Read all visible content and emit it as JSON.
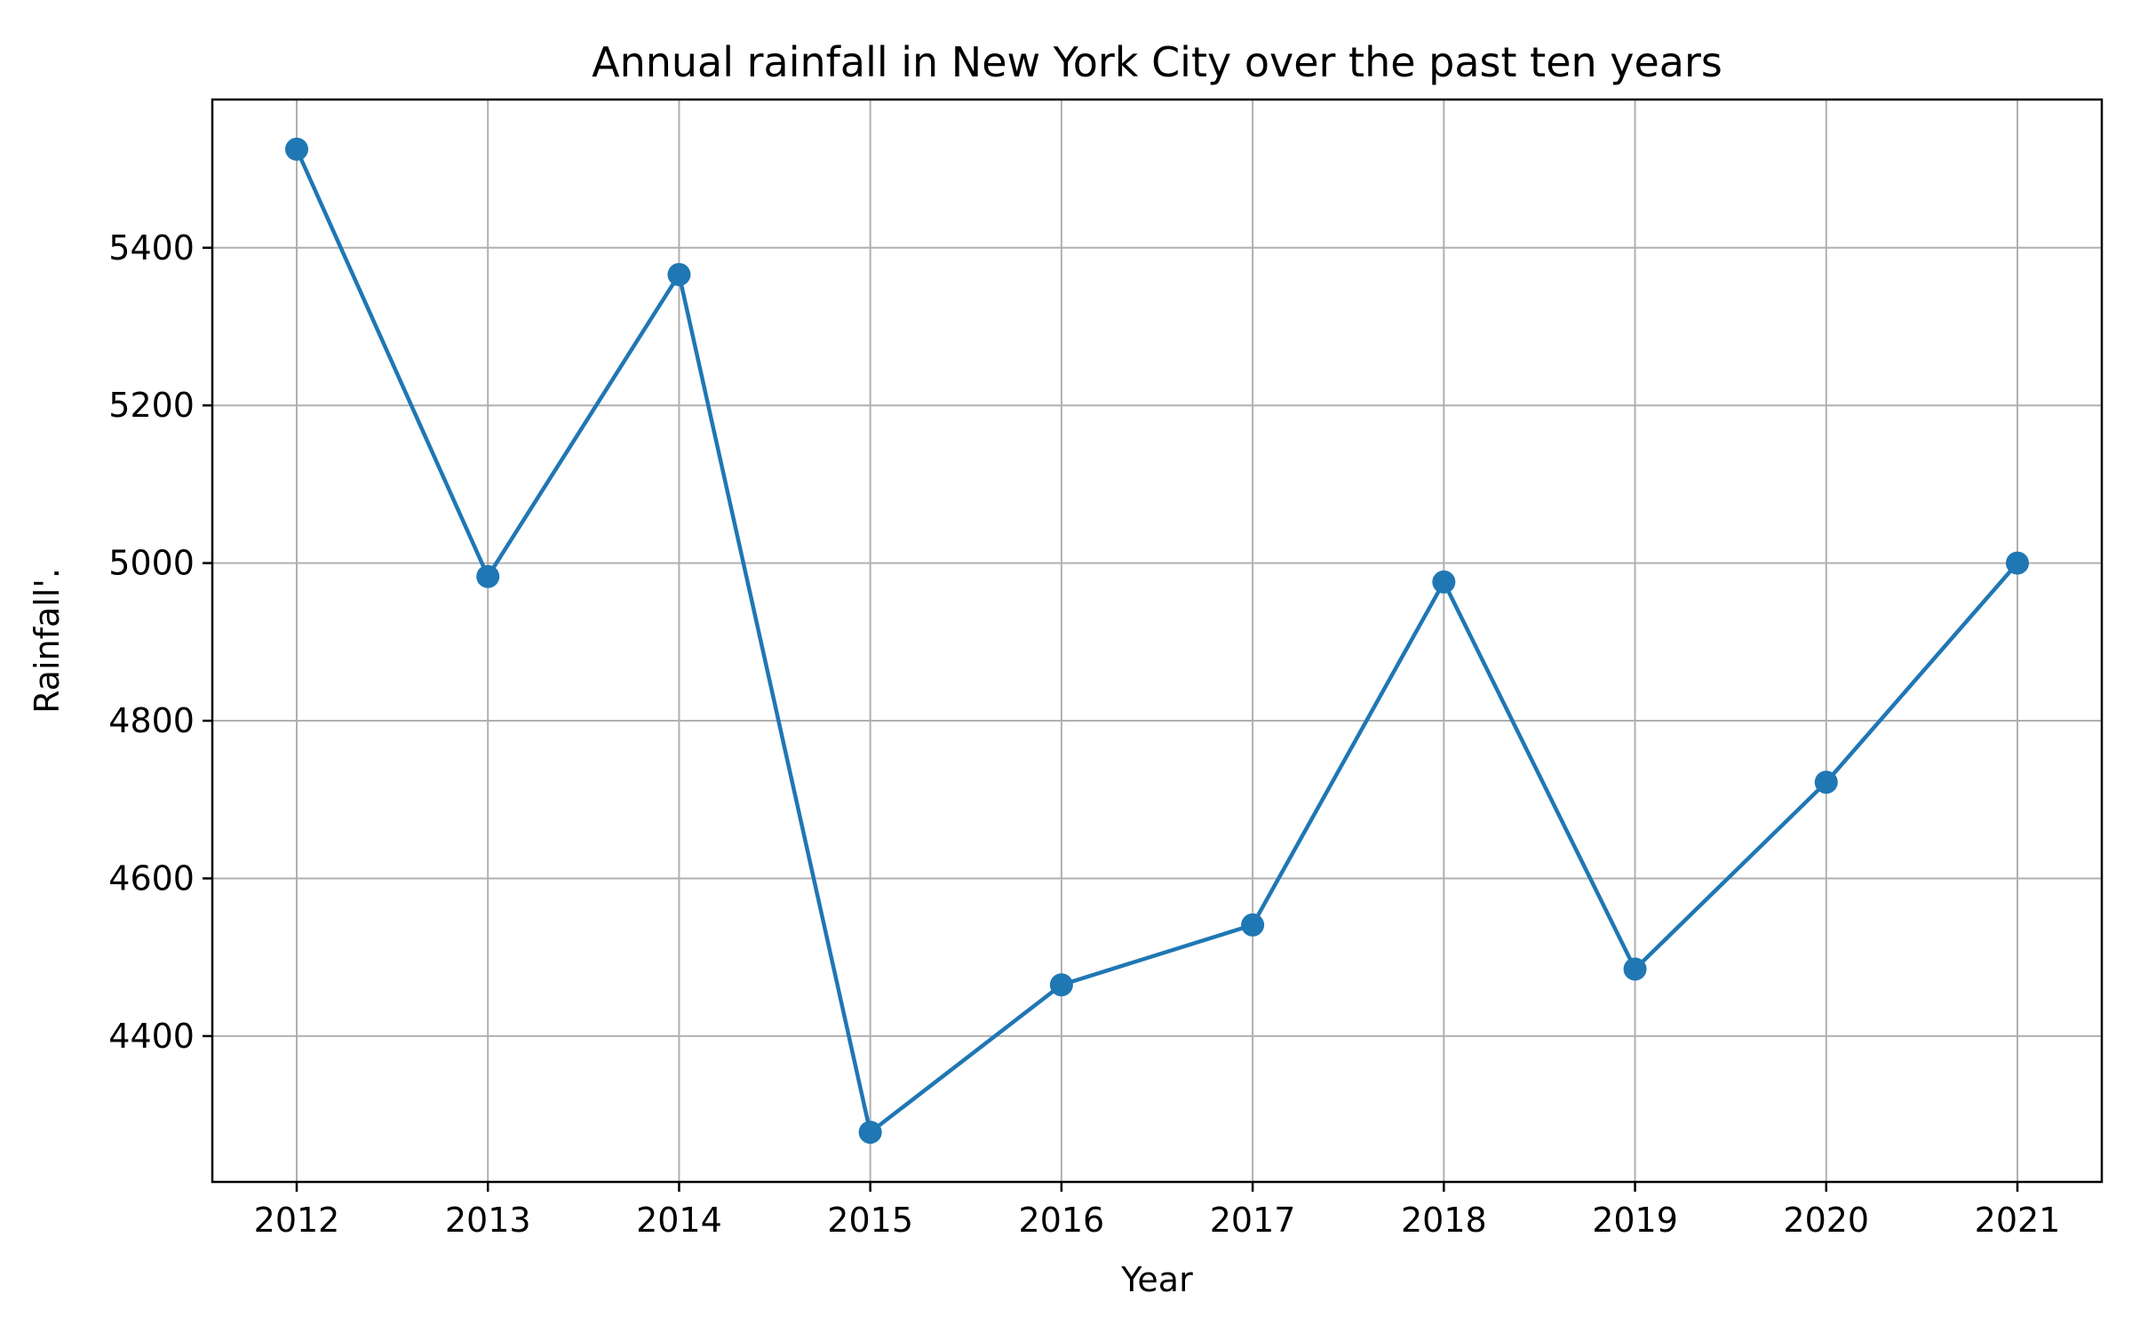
{
  "chart_data": {
    "type": "line",
    "title": "Annual rainfall in New York City over the past ten years",
    "xlabel": "Year",
    "ylabel": "Rainfall'.",
    "categories": [
      "2012",
      "2013",
      "2014",
      "2015",
      "2016",
      "2017",
      "2018",
      "2019",
      "2020",
      "2021"
    ],
    "yticks": [
      4400,
      4600,
      4800,
      5000,
      5200,
      5400
    ],
    "ylim": [
      4215,
      5588
    ],
    "grid": true,
    "series": [
      {
        "values": [
          5525,
          4983,
          5366,
          4278,
          4465,
          4541,
          4976,
          4485,
          4722,
          5000
        ],
        "color": "#1f77b4",
        "marker": "circle"
      }
    ]
  }
}
